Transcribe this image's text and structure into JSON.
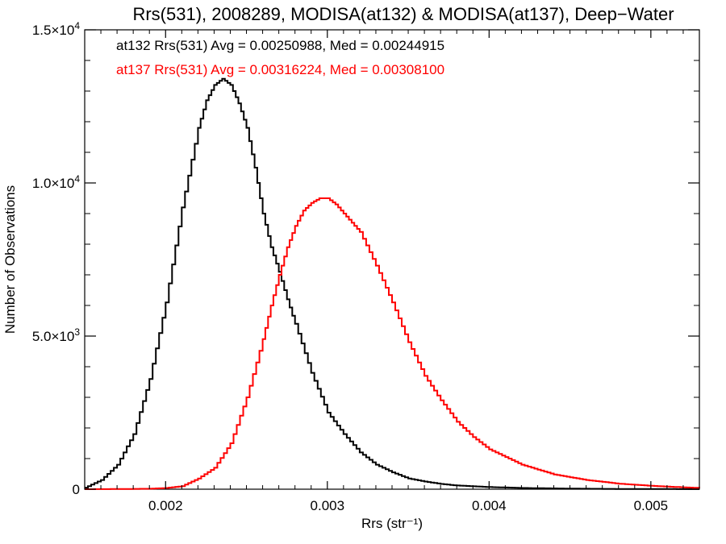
{
  "chart_data": {
    "type": "line",
    "title": "Rrs(531), 2008289, MODISA(at132) & MODISA(at137), Deep−Water",
    "xlabel": "Rrs (str⁻¹)",
    "ylabel": "Number of Observations",
    "xlim": [
      0.0015,
      0.0053
    ],
    "ylim": [
      0,
      15000
    ],
    "grid": false,
    "step": true,
    "x_ticks": [
      {
        "value": 0.002,
        "label": "0.002"
      },
      {
        "value": 0.003,
        "label": "0.003"
      },
      {
        "value": 0.004,
        "label": "0.004"
      },
      {
        "value": 0.005,
        "label": "0.005"
      }
    ],
    "y_ticks": [
      {
        "value": 0,
        "label": "0"
      },
      {
        "value": 5000,
        "label": "5.0×10",
        "exp": "3"
      },
      {
        "value": 10000,
        "label": "1.0×10",
        "exp": "4"
      },
      {
        "value": 15000,
        "label": "1.5×10",
        "exp": "4"
      }
    ],
    "annotations": [
      {
        "text": "at132 Rrs(531) Avg = 0.00250988, Med = 0.00244915",
        "color": "#000000"
      },
      {
        "text": "at137 Rrs(531) Avg = 0.00316224, Med = 0.00308100",
        "color": "#ff0000"
      }
    ],
    "series": [
      {
        "color": "#000000",
        "x": [
          0.0015,
          0.0016,
          0.0017,
          0.0018,
          0.0019,
          0.002,
          0.0021,
          0.0022,
          0.00225,
          0.0023,
          0.00235,
          0.0024,
          0.00245,
          0.0025,
          0.00255,
          0.0026,
          0.00265,
          0.0027,
          0.00275,
          0.0028,
          0.0029,
          0.003,
          0.0031,
          0.0032,
          0.0033,
          0.0034,
          0.0035,
          0.0036,
          0.0037,
          0.0038,
          0.004,
          0.0042,
          0.0044,
          0.0046,
          0.0048,
          0.005,
          0.0053
        ],
        "y": [
          50,
          300,
          800,
          1800,
          3600,
          6100,
          9200,
          11800,
          12700,
          13200,
          13400,
          13200,
          12600,
          11800,
          10500,
          9000,
          7900,
          7100,
          6200,
          5400,
          3800,
          2500,
          1800,
          1200,
          800,
          550,
          350,
          250,
          170,
          120,
          70,
          40,
          25,
          15,
          8,
          5,
          3
        ]
      },
      {
        "color": "#ff0000",
        "x": [
          0.0015,
          0.0017,
          0.0019,
          0.002,
          0.0021,
          0.0022,
          0.0023,
          0.0024,
          0.0025,
          0.0026,
          0.00265,
          0.0027,
          0.00275,
          0.0028,
          0.00285,
          0.0029,
          0.00295,
          0.003,
          0.00305,
          0.0031,
          0.00315,
          0.0032,
          0.0033,
          0.0034,
          0.0035,
          0.0036,
          0.0037,
          0.0038,
          0.0039,
          0.004,
          0.0042,
          0.0044,
          0.0046,
          0.0048,
          0.005,
          0.0052,
          0.0053
        ],
        "y": [
          0,
          5,
          15,
          40,
          100,
          350,
          700,
          1500,
          3000,
          4900,
          6000,
          7000,
          7900,
          8600,
          9100,
          9350,
          9500,
          9500,
          9300,
          9000,
          8700,
          8400,
          7300,
          6100,
          4800,
          3700,
          2900,
          2200,
          1700,
          1300,
          800,
          480,
          300,
          180,
          110,
          60,
          40
        ]
      }
    ]
  }
}
